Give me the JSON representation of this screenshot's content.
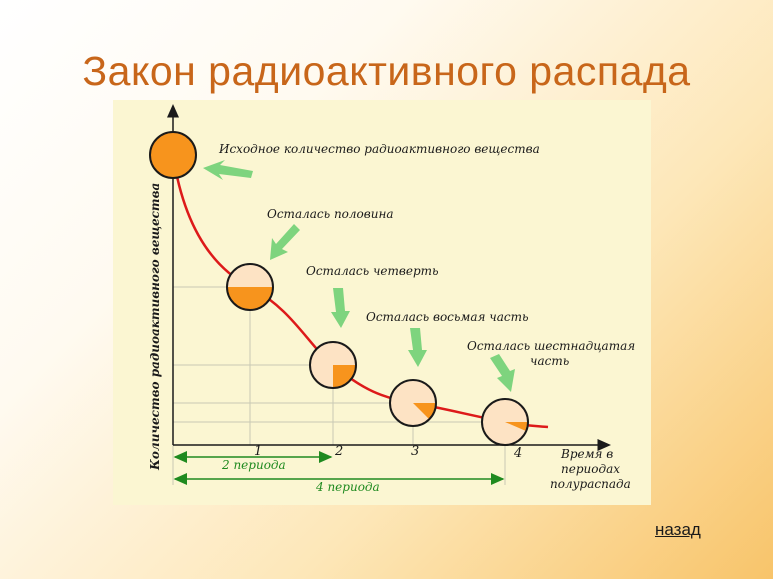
{
  "title": "Закон радиоактивного распада",
  "back_link": "назад",
  "diagram": {
    "y_axis_label": "Количество радиоактивного вещества",
    "x_axis_label": [
      "Время в",
      "периодах",
      "полураспада"
    ],
    "x_ticks": [
      "1",
      "2",
      "3",
      "4"
    ],
    "captions": {
      "initial": "Исходное количество радиоактивного вещества",
      "half": "Осталась половина",
      "quarter": "Осталась четверть",
      "eighth": "Осталась восьмая часть",
      "sixteenth": [
        "Осталась шестнадцатая",
        "часть"
      ]
    },
    "spans": {
      "two_periods": "2 периода",
      "four_periods": "4 периода"
    },
    "remaining_fractions": [
      1,
      0.5,
      0.25,
      0.125,
      0.0625
    ],
    "colors": {
      "title": "#c8661a",
      "curve": "#dd1a1a",
      "remaining": "#f7941d",
      "decayed": "#fde3c4",
      "arrows": "#7ed47e",
      "spans": "#1f8a1f",
      "panel": "#fbf6d2"
    }
  }
}
